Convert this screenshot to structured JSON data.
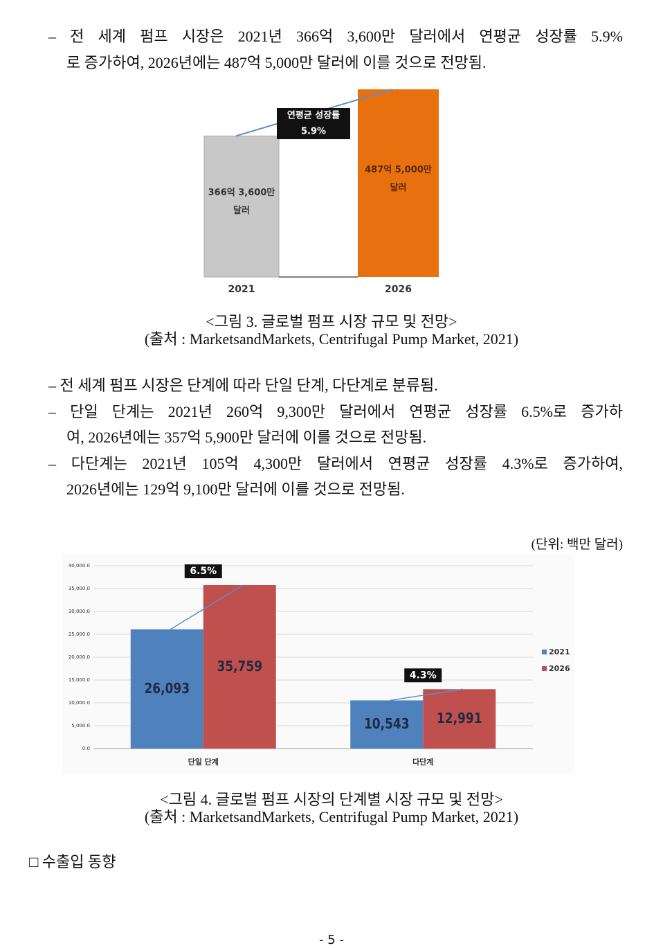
{
  "paragraph_1": [
    "– 전 세계 펌프 시장은 2021년 366억 3,600만 달러에서 연평균 성장률 5.9%",
    "로 증가하여, 2026년에는 487억 5,000만 달러에 이를 것으로 전망됨."
  ],
  "figure_1_caption": "<그림 3. 글로벌 펌프 시장 규모 및 전망>",
  "figure_1_source": "(출처 : MarketsandMarkets, Centrifugal Pump Market, 2021)",
  "bullets": [
    [
      "– 전 세계 펌프 시장은 단계에 따라 단일 단계, 다단계로 분류됨."
    ],
    [
      "– 단일 단계는 2021년 260억 9,300만 달러에서 연평균 성장률 6.5%로 증가하",
      "여, 2026년에는 357억 5,900만 달러에 이를 것으로 전망됨."
    ],
    [
      "– 다단계는 2021년 105억 4,300만 달러에서 연평균 성장률 4.3%로 증가하여,",
      "2026년에는 129억 9,100만 달러에 이를 것으로 전망됨."
    ]
  ],
  "unit_note": "(단위: 백만 달러)",
  "figure_2_caption": "<그림 4. 글로벌 펌프 시장의 단계별 시장 규모 및 전망>",
  "figure_2_source": "(출처 : MarketsandMarkets, Centrifugal Pump Market, 2021)",
  "section_heading": "□ 수출입 동향",
  "page_number": "- 5 -",
  "chart_data": [
    {
      "type": "bar",
      "categories": [
        "2021",
        "2026"
      ],
      "values": [
        36636,
        48750
      ],
      "value_labels": [
        "366억 3,600만 달러",
        "487억 5,000만 달러"
      ],
      "colors": [
        "#c8c8c8",
        "#e8700f"
      ],
      "annotation": [
        "연평균 성장률",
        "5.9%"
      ]
    },
    {
      "type": "grouped_bar",
      "categories": [
        "단일 단계",
        "다단계"
      ],
      "series": [
        {
          "name": "2021",
          "color": "#4f81bd",
          "values": [
            26093,
            10543
          ],
          "value_labels": [
            "26,093",
            "10,543"
          ]
        },
        {
          "name": "2026",
          "color": "#c0504d",
          "values": [
            35759,
            12991
          ],
          "value_labels": [
            "35,759",
            "12,991"
          ]
        }
      ],
      "annotations": [
        "6.5%",
        "4.3%"
      ],
      "ylim": [
        0,
        40000
      ],
      "yticks": [
        {
          "value": 0,
          "label": "0.0"
        },
        {
          "value": 5000,
          "label": "5,000.0"
        },
        {
          "value": 10000,
          "label": "10,000.0"
        },
        {
          "value": 15000,
          "label": "15,000.0"
        },
        {
          "value": 20000,
          "label": "20,000.0"
        },
        {
          "value": 25000,
          "label": "25,000.0"
        },
        {
          "value": 30000,
          "label": "30,000.0"
        },
        {
          "value": 35000,
          "label": "35,000.0"
        },
        {
          "value": 40000,
          "label": "40,000.0"
        }
      ],
      "grid": true,
      "legend": "right"
    }
  ]
}
